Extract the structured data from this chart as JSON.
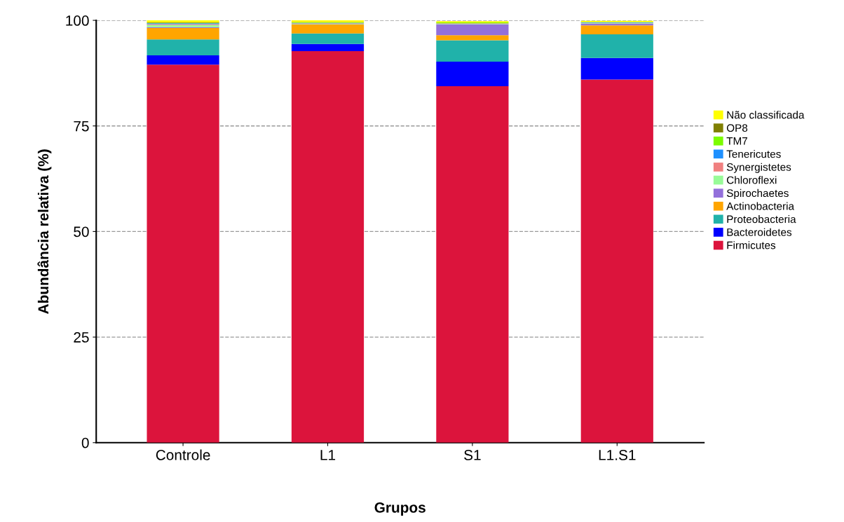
{
  "chart_data": {
    "type": "bar",
    "stacked": true,
    "xlabel": "Grupos",
    "ylabel": "Abundância relativa (%)",
    "categories": [
      "Controle",
      "L1",
      "S1",
      "L1.S1"
    ],
    "series": [
      {
        "name": "Firmicutes",
        "color": "#dc143c",
        "values": [
          89.5,
          92.7,
          84.4,
          86.0
        ]
      },
      {
        "name": "Bacteroidetes",
        "color": "#0000ff",
        "values": [
          2.2,
          1.7,
          5.8,
          5.1
        ]
      },
      {
        "name": "Proteobacteria",
        "color": "#20b2aa",
        "values": [
          3.8,
          2.5,
          5.1,
          5.6
        ]
      },
      {
        "name": "Actinobacteria",
        "color": "#ffa500",
        "values": [
          2.7,
          2.1,
          1.2,
          2.1
        ]
      },
      {
        "name": "Spirochaetes",
        "color": "#9370db",
        "values": [
          0.2,
          0.1,
          2.6,
          0.4
        ]
      },
      {
        "name": "Chloroflexi",
        "color": "#98fb98",
        "values": [
          0.5,
          0.1,
          0.1,
          0.1
        ]
      },
      {
        "name": "Synergistetes",
        "color": "#f08080",
        "values": [
          0.2,
          0.1,
          0.1,
          0.1
        ]
      },
      {
        "name": "Tenericutes",
        "color": "#1e90ff",
        "values": [
          0.2,
          0.1,
          null,
          0.1
        ]
      },
      {
        "name": "TM7",
        "color": "#7cfc00",
        "values": [
          0.1,
          0.1,
          0.2,
          0.1
        ]
      },
      {
        "name": "OP8",
        "color": "#808000",
        "values": [
          0.1,
          0.1,
          null,
          null
        ]
      },
      {
        "name": "Não classificada",
        "color": "#ffff00",
        "values": [
          0.5,
          0.4,
          0.3,
          0.3
        ]
      }
    ],
    "ylim": [
      0,
      100
    ],
    "yticks": [
      0,
      25,
      50,
      75,
      100
    ],
    "grid": "y",
    "legend": "right"
  }
}
